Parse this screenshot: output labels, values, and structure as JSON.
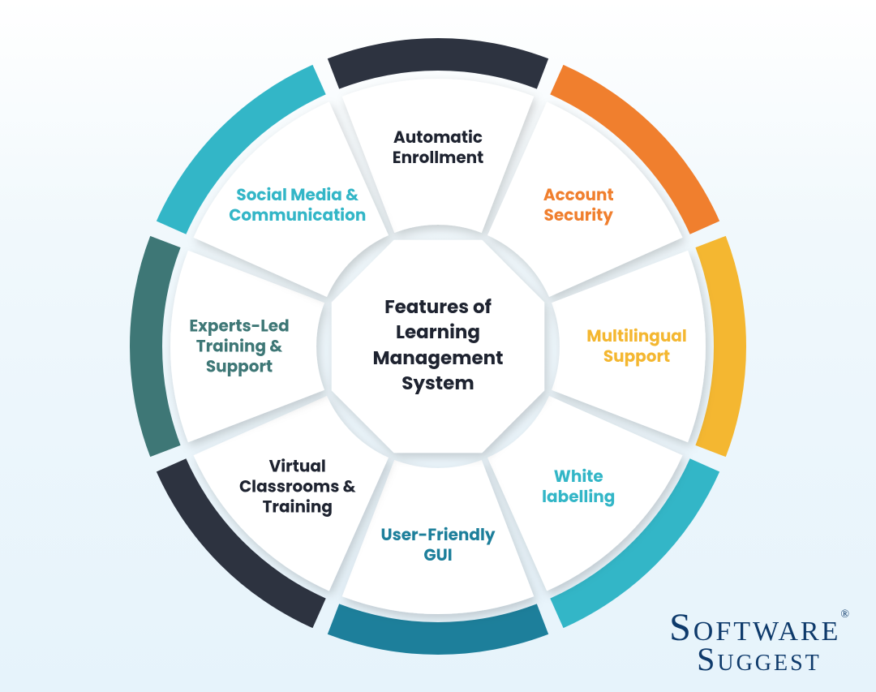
{
  "diagram": {
    "type": "radial-segmented-infographic",
    "center_title": "Features of Learning Management System",
    "center_title_color": "#1e2330",
    "center_title_fontsize": 23,
    "center_bg": "#ffffff",
    "background_gradient": [
      "#ffffff",
      "#e6f3fb"
    ],
    "segment_count": 8,
    "gap_deg": 3,
    "outer_radius": 380,
    "ring_thickness": 40,
    "wedge_inner_radius": 150,
    "wedge_outer_radius": 330,
    "label_radius": 245,
    "label_fontsize": 20,
    "shadow_color": "rgba(0,0,0,0.15)",
    "segments": [
      {
        "label": "Automatic Enrollment",
        "ring_color": "#2d3340",
        "text_color": "#1e2330"
      },
      {
        "label": "Account Security",
        "ring_color": "#f07f2e",
        "text_color": "#f07f2e"
      },
      {
        "label": "Multilingual Support",
        "ring_color": "#f4b731",
        "text_color": "#f4b731"
      },
      {
        "label": "White labelling",
        "ring_color": "#33b6c7",
        "text_color": "#33b6c7"
      },
      {
        "label": "User-Friendly GUI",
        "ring_color": "#1d7f9b",
        "text_color": "#1d7f9b"
      },
      {
        "label": "Virtual Classrooms & Training",
        "ring_color": "#2d3340",
        "text_color": "#1e2330"
      },
      {
        "label": "Experts-Led Training & Support",
        "ring_color": "#3e7776",
        "text_color": "#3e7776"
      },
      {
        "label": "Social Media & Communication",
        "ring_color": "#33b6c7",
        "text_color": "#33b6c7"
      }
    ]
  },
  "brand": {
    "line1": "Software",
    "line2": "Suggest",
    "registered": "®",
    "color": "#0e3a6b"
  }
}
